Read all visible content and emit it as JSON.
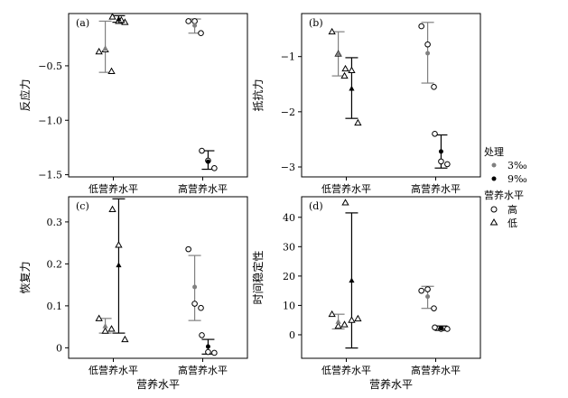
{
  "colors": {
    "gray": "#808080",
    "black": "#000000",
    "hollow_stroke": "#000000"
  },
  "legend": {
    "title1": "处理",
    "items1": [
      {
        "label": "3‰",
        "color": "#808080"
      },
      {
        "label": "9‰",
        "color": "#000000"
      }
    ],
    "title2": "营养水平",
    "items2": [
      {
        "label": "高",
        "shape": "circle"
      },
      {
        "label": "低",
        "shape": "triangle"
      }
    ]
  },
  "chart_data": [
    {
      "type": "scatter",
      "panel_label": "(a)",
      "ylabel": "反应力",
      "xlabel": "",
      "categories": [
        "低营养水平",
        "高营养水平"
      ],
      "ylim": [
        -1.52,
        -0.02
      ],
      "yticks": [
        -1.5,
        -1.0,
        -0.5
      ],
      "ytick_labels": [
        "−1.5",
        "−1.0",
        "−0.5"
      ],
      "groups": [
        {
          "category": 0,
          "treatment": "3‰",
          "shape": "triangle",
          "points": [
            -0.37,
            -0.35,
            -0.55
          ],
          "mean": -0.34,
          "err_low": -0.56,
          "err_high": -0.09,
          "offset": -0.09
        },
        {
          "category": 0,
          "treatment": "9‰",
          "shape": "triangle",
          "points": [
            -0.05,
            -0.09,
            -0.1,
            -0.08
          ],
          "mean": -0.07,
          "err_low": -0.1,
          "err_high": -0.04,
          "offset": 0.06
        },
        {
          "category": 1,
          "treatment": "3‰",
          "shape": "circle",
          "points": [
            -0.09,
            -0.09,
            -0.2
          ],
          "mean": -0.13,
          "err_low": -0.2,
          "err_high": -0.07,
          "offset": -0.09
        },
        {
          "category": 1,
          "treatment": "9‰",
          "shape": "circle",
          "points": [
            -1.28,
            -1.37,
            -1.44
          ],
          "mean": -1.38,
          "err_low": -1.45,
          "err_high": -1.28,
          "offset": 0.06
        }
      ]
    },
    {
      "type": "scatter",
      "panel_label": "(b)",
      "ylabel": "抵抗力",
      "xlabel": "",
      "categories": [
        "低营养水平",
        "高营养水平"
      ],
      "ylim": [
        -3.18,
        -0.22
      ],
      "yticks": [
        -3,
        -2,
        -1
      ],
      "ytick_labels": [
        "−3",
        "−2",
        "−1"
      ],
      "groups": [
        {
          "category": 0,
          "treatment": "3‰",
          "shape": "triangle",
          "points": [
            -0.55,
            -0.95,
            -1.35
          ],
          "mean": -0.95,
          "err_low": -1.35,
          "err_high": -0.55,
          "offset": -0.09
        },
        {
          "category": 0,
          "treatment": "9‰",
          "shape": "triangle",
          "points": [
            -1.22,
            -1.25,
            -2.2
          ],
          "mean": -1.58,
          "err_low": -2.12,
          "err_high": -1.02,
          "offset": 0.06
        },
        {
          "category": 1,
          "treatment": "3‰",
          "shape": "circle",
          "points": [
            -0.45,
            -0.78,
            -1.55
          ],
          "mean": -0.94,
          "err_low": -1.48,
          "err_high": -0.38,
          "offset": -0.09
        },
        {
          "category": 1,
          "treatment": "9‰",
          "shape": "circle",
          "points": [
            -2.4,
            -2.9,
            -2.95
          ],
          "mean": -2.72,
          "err_low": -3.02,
          "err_high": -2.42,
          "offset": 0.06
        }
      ]
    },
    {
      "type": "scatter",
      "panel_label": "(c)",
      "ylabel": "恢复力",
      "xlabel": "营养水平",
      "categories": [
        "低营养水平",
        "高营养水平"
      ],
      "ylim": [
        -0.025,
        0.36
      ],
      "yticks": [
        0,
        0.1,
        0.2,
        0.3
      ],
      "ytick_labels": [
        "0",
        "0.1",
        "0.2",
        "0.3"
      ],
      "groups": [
        {
          "category": 0,
          "treatment": "3‰",
          "shape": "triangle",
          "points": [
            0.07,
            0.04,
            0.045
          ],
          "mean": 0.052,
          "err_low": 0.035,
          "err_high": 0.07,
          "offset": -0.09
        },
        {
          "category": 0,
          "treatment": "9‰",
          "shape": "triangle",
          "points": [
            0.33,
            0.245,
            0.02
          ],
          "mean": 0.197,
          "err_low": 0.035,
          "err_high": 0.355,
          "offset": 0.06
        },
        {
          "category": 1,
          "treatment": "3‰",
          "shape": "circle",
          "points": [
            0.235,
            0.105,
            0.095
          ],
          "mean": 0.145,
          "err_low": 0.065,
          "err_high": 0.22,
          "offset": -0.09
        },
        {
          "category": 1,
          "treatment": "9‰",
          "shape": "circle",
          "points": [
            0.03,
            -0.01,
            -0.012
          ],
          "mean": 0.003,
          "err_low": -0.015,
          "err_high": 0.02,
          "offset": 0.06
        }
      ]
    },
    {
      "type": "scatter",
      "panel_label": "(d)",
      "ylabel": "时间稳定性",
      "xlabel": "营养水平",
      "categories": [
        "低营养水平",
        "高营养水平"
      ],
      "ylim": [
        -8,
        47
      ],
      "yticks": [
        0,
        10,
        20,
        30,
        40
      ],
      "ytick_labels": [
        "0",
        "10",
        "20",
        "30",
        "40"
      ],
      "groups": [
        {
          "category": 0,
          "treatment": "3‰",
          "shape": "triangle",
          "points": [
            7,
            3,
            3.5
          ],
          "mean": 4.5,
          "err_low": 2,
          "err_high": 7,
          "offset": -0.09
        },
        {
          "category": 0,
          "treatment": "9‰",
          "shape": "triangle",
          "points": [
            45,
            5,
            5.5
          ],
          "mean": 18.5,
          "err_low": -4.5,
          "err_high": 41.5,
          "offset": 0.06
        },
        {
          "category": 1,
          "treatment": "3‰",
          "shape": "circle",
          "points": [
            15,
            15.5,
            9
          ],
          "mean": 13,
          "err_low": 9,
          "err_high": 16.5,
          "offset": -0.09
        },
        {
          "category": 1,
          "treatment": "9‰",
          "shape": "circle",
          "points": [
            2.5,
            2,
            2
          ],
          "mean": 2.2,
          "err_low": 1.5,
          "err_high": 3,
          "offset": 0.06
        }
      ]
    }
  ]
}
